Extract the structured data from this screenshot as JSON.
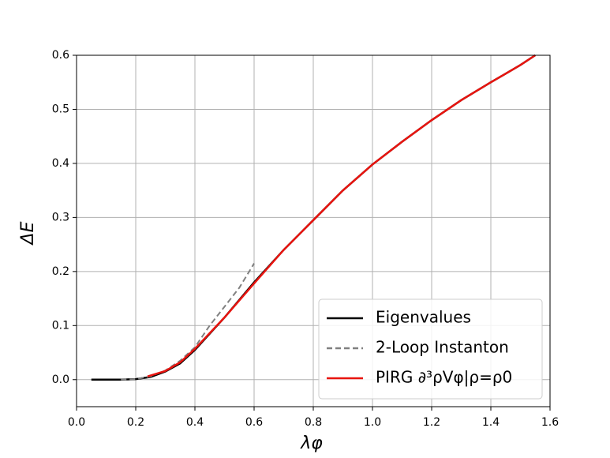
{
  "chart_data": {
    "type": "line",
    "xlabel": "λφ",
    "ylabel": "ΔE",
    "xlim": [
      0,
      1.6
    ],
    "ylim": [
      -0.05,
      0.6
    ],
    "xticks": [
      {
        "value": 0,
        "label": "0.0"
      },
      0.2,
      0.4,
      0.6,
      0.8,
      {
        "value": 1,
        "label": "1.0"
      },
      1.2,
      1.4,
      1.6
    ],
    "yticks": [
      {
        "value": 0,
        "label": "0.0"
      },
      0.1,
      0.2,
      0.3,
      0.4,
      0.5,
      0.6
    ],
    "grid": true,
    "legend": "lower right",
    "series": [
      {
        "name": "Eigenvalues",
        "color": "#000000",
        "style": "solid",
        "x": [
          0.05,
          0.1,
          0.15,
          0.2,
          0.25,
          0.3,
          0.35,
          0.4,
          0.45,
          0.5,
          0.6,
          0.7,
          0.8,
          0.9,
          1.0,
          1.1,
          1.2,
          1.3,
          1.4,
          1.5,
          1.55
        ],
        "values": [
          0,
          0,
          0,
          0.001,
          0.005,
          0.015,
          0.03,
          0.055,
          0.085,
          0.115,
          0.18,
          0.24,
          0.295,
          0.35,
          0.398,
          0.44,
          0.48,
          0.517,
          0.55,
          0.582,
          0.6
        ]
      },
      {
        "name": "2-Loop Instanton",
        "color": "#808080",
        "style": "dashed",
        "x": [
          0.15,
          0.2,
          0.25,
          0.3,
          0.35,
          0.4,
          0.45,
          0.5,
          0.55,
          0.6
        ],
        "values": [
          0,
          0.001,
          0.006,
          0.017,
          0.035,
          0.06,
          0.1,
          0.135,
          0.17,
          0.215
        ]
      },
      {
        "name": "PIRG ∂³ρVφ|ρ=ρ0",
        "color": "#e8140f",
        "style": "solid",
        "x": [
          0.24,
          0.3,
          0.35,
          0.4,
          0.45,
          0.5,
          0.6,
          0.7,
          0.8,
          0.9,
          1.0,
          1.1,
          1.2,
          1.3,
          1.4,
          1.5,
          1.55
        ],
        "values": [
          0.006,
          0.016,
          0.032,
          0.057,
          0.086,
          0.115,
          0.178,
          0.24,
          0.295,
          0.35,
          0.398,
          0.44,
          0.48,
          0.517,
          0.55,
          0.582,
          0.6
        ]
      }
    ]
  }
}
